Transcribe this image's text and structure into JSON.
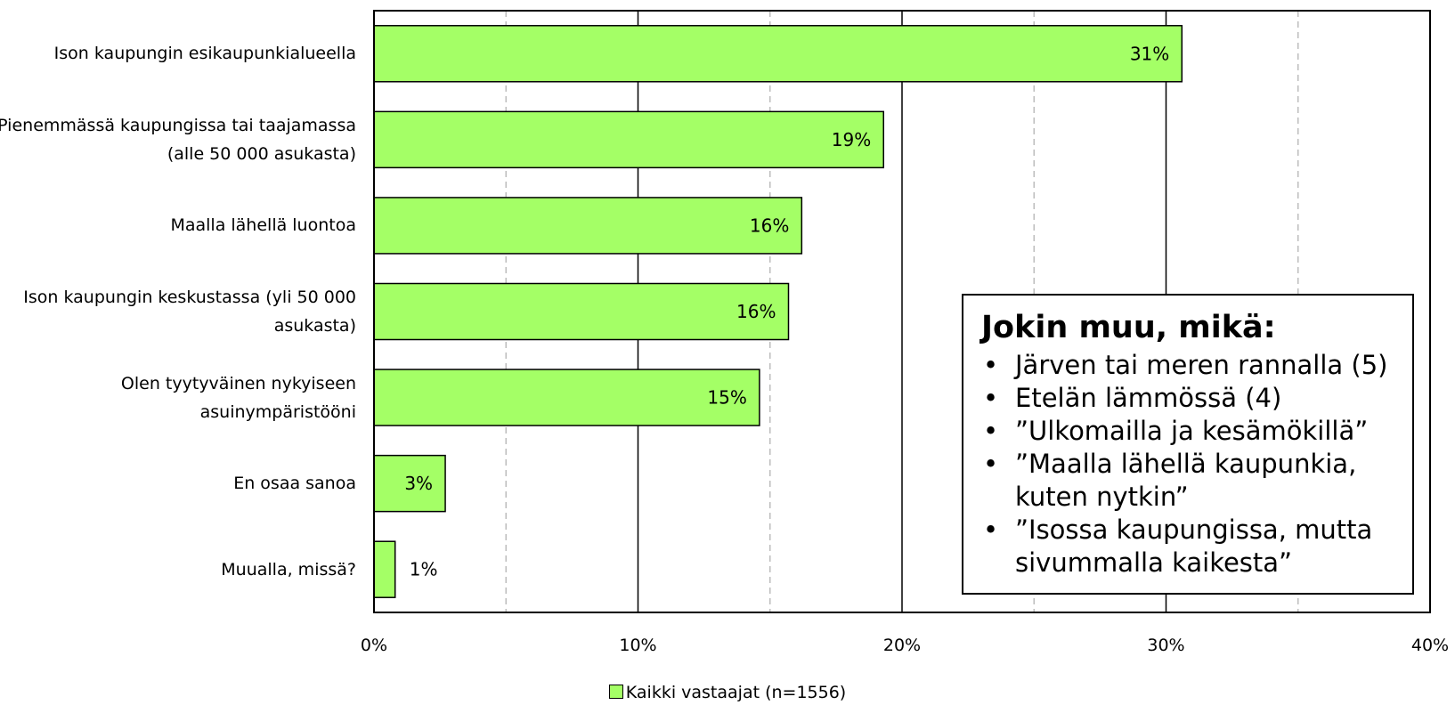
{
  "chart_data": {
    "type": "bar",
    "orientation": "horizontal",
    "categories": [
      "Ison kaupungin esikaupunkialueella",
      "Pienemmässä kaupungissa tai taajamassa (alle 50 000 asukasta)",
      "Maalla lähellä luontoa",
      "Ison kaupungin keskustassa (yli 50 000 asukasta)",
      "Olen tyytyväinen nykyiseen asuinympäristööni",
      "En osaa sanoa",
      "Muualla, missä?"
    ],
    "series": [
      {
        "name": "Kaikki vastaajat (n=1556)",
        "values": [
          30.6,
          19.3,
          16.2,
          15.7,
          14.6,
          2.7,
          0.8
        ],
        "labels": [
          "31%",
          "19%",
          "16%",
          "16%",
          "15%",
          "3%",
          "1%"
        ]
      }
    ],
    "xlim": [
      0,
      40
    ],
    "xticks": [
      "0%",
      "10%",
      "20%",
      "30%",
      "40%"
    ],
    "grid": "vertical, solid major every 10%, dashed minor every 5%",
    "bar_color": "#a4ff66",
    "legend_position": "bottom-center",
    "annotation": {
      "title": "Jokin muu, mikä:",
      "items": [
        "Järven tai meren rannalla (5)",
        "Etelän lämmössä (4)",
        "”Ulkomailla ja kesämökillä”",
        "”Maalla lähellä kaupunkia, kuten nytkin”",
        "”Isossa kaupungissa, mutta sivummalla kaikesta”"
      ]
    }
  }
}
